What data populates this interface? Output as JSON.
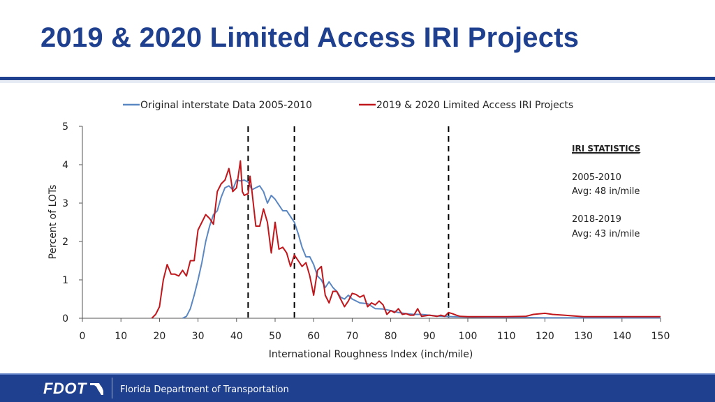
{
  "slide": {
    "title": "2019 & 2020 Limited Access IRI Projects",
    "footer_org": "Florida Department of Transportation",
    "logo_text": "FDOT",
    "colors": {
      "brand": "#1f3f8f",
      "series_original": "#5b87c2",
      "series_projects": "#c0171c"
    }
  },
  "annotation": {
    "heading": "IRI STATISTICS",
    "lines": [
      "2005-2010",
      "Avg: 48 in/mile",
      "2018-2019",
      "Avg: 43 in/mile"
    ]
  },
  "chart_data": {
    "type": "line",
    "title": "",
    "xlabel": "International Roughness Index (inch/mile)",
    "ylabel": "Percent of LOTs",
    "xlim": [
      0,
      150
    ],
    "ylim": [
      0,
      5
    ],
    "xticks": [
      0,
      10,
      20,
      30,
      40,
      50,
      60,
      70,
      80,
      90,
      100,
      110,
      120,
      130,
      140,
      150
    ],
    "yticks": [
      0,
      1,
      2,
      3,
      4,
      5
    ],
    "legend": "top",
    "vlines": [
      43,
      55,
      95
    ],
    "series": [
      {
        "name": "Original interstate Data 2005-2010",
        "color": "#5b87c2",
        "x": [
          26,
          27,
          28,
          29,
          30,
          31,
          32,
          33,
          34,
          35,
          36,
          37,
          38,
          39,
          40,
          41,
          42,
          43,
          44,
          45,
          46,
          47,
          48,
          49,
          50,
          51,
          52,
          53,
          54,
          55,
          56,
          57,
          58,
          59,
          60,
          61,
          62,
          63,
          64,
          65,
          66,
          67,
          68,
          69,
          70,
          72,
          74,
          76,
          78,
          80,
          82,
          84,
          86,
          88,
          90,
          92,
          94,
          96,
          100,
          105,
          110,
          115,
          120,
          130,
          140,
          150
        ],
        "values": [
          0,
          0.05,
          0.25,
          0.6,
          1.0,
          1.45,
          2.0,
          2.4,
          2.7,
          2.8,
          3.15,
          3.4,
          3.45,
          3.35,
          3.6,
          3.58,
          3.6,
          3.55,
          3.35,
          3.4,
          3.45,
          3.3,
          3.0,
          3.2,
          3.1,
          2.95,
          2.8,
          2.8,
          2.65,
          2.5,
          2.2,
          1.85,
          1.6,
          1.6,
          1.4,
          1.1,
          1.0,
          0.8,
          0.95,
          0.8,
          0.7,
          0.55,
          0.5,
          0.6,
          0.5,
          0.4,
          0.38,
          0.25,
          0.24,
          0.2,
          0.15,
          0.12,
          0.1,
          0.1,
          0.08,
          0.06,
          0.05,
          0.04,
          0.03,
          0.02,
          0.02,
          0.02,
          0.01,
          0.01,
          0.01,
          0.01
        ]
      },
      {
        "name": "2019 & 2020 Limited Access IRI Projects",
        "color": "#c0171c",
        "x": [
          18,
          19,
          20,
          21,
          22,
          23,
          24,
          25,
          26,
          27,
          28,
          29,
          30,
          31,
          32,
          33,
          34,
          35,
          36,
          37,
          38,
          38.5,
          39,
          40,
          41,
          41.5,
          42,
          43,
          43.5,
          44,
          45,
          46,
          47,
          48,
          49,
          50,
          51,
          52,
          53,
          54,
          55,
          56,
          57,
          58,
          59,
          60,
          61,
          62,
          63,
          64,
          65,
          66,
          67,
          68,
          69,
          70,
          71,
          72,
          73,
          74,
          75,
          76,
          77,
          78,
          79,
          80,
          81,
          82,
          83,
          84,
          85,
          86,
          87,
          88,
          90,
          92,
          93,
          94,
          95,
          96,
          97,
          98,
          100,
          105,
          110,
          115,
          117,
          120,
          122,
          125,
          130,
          140,
          150
        ],
        "values": [
          0,
          0.1,
          0.3,
          1.0,
          1.4,
          1.15,
          1.15,
          1.1,
          1.25,
          1.1,
          1.5,
          1.5,
          2.3,
          2.5,
          2.7,
          2.6,
          2.45,
          3.3,
          3.5,
          3.6,
          3.9,
          3.65,
          3.3,
          3.4,
          4.1,
          3.3,
          3.2,
          3.25,
          3.7,
          3.3,
          2.4,
          2.4,
          2.85,
          2.5,
          1.7,
          2.5,
          1.8,
          1.85,
          1.7,
          1.35,
          1.65,
          1.5,
          1.35,
          1.45,
          1.1,
          0.6,
          1.25,
          1.35,
          0.6,
          0.4,
          0.7,
          0.7,
          0.5,
          0.3,
          0.45,
          0.65,
          0.62,
          0.55,
          0.6,
          0.3,
          0.4,
          0.35,
          0.45,
          0.35,
          0.1,
          0.2,
          0.15,
          0.25,
          0.1,
          0.12,
          0.08,
          0.08,
          0.25,
          0.05,
          0.08,
          0.05,
          0.08,
          0.05,
          0.15,
          0.12,
          0.08,
          0.05,
          0.04,
          0.04,
          0.04,
          0.05,
          0.1,
          0.13,
          0.1,
          0.08,
          0.04,
          0.04,
          0.04
        ]
      }
    ]
  }
}
